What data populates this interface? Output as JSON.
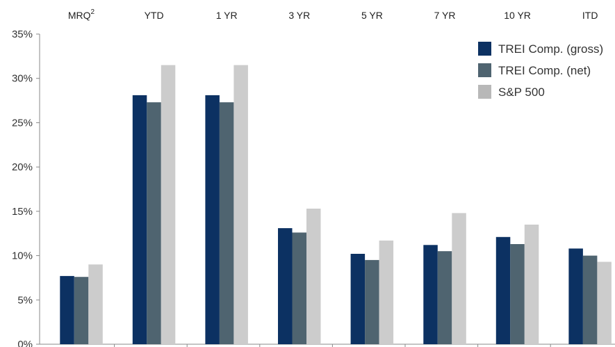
{
  "chart_data": {
    "type": "bar",
    "categories": [
      "MRQ",
      "YTD",
      "1 YR",
      "3 YR",
      "5 YR",
      "7 YR",
      "10 YR",
      "ITD"
    ],
    "category_superscripts": [
      "2",
      "",
      "",
      "",
      "",
      "",
      "",
      ""
    ],
    "series": [
      {
        "name": "TREI Comp. (gross)",
        "color": "#0c3162",
        "values": [
          7.7,
          28.1,
          28.1,
          13.1,
          10.2,
          11.2,
          12.1,
          10.8
        ]
      },
      {
        "name": "TREI Comp. (net)",
        "color": "#4f6470",
        "values": [
          7.6,
          27.3,
          27.3,
          12.6,
          9.5,
          10.5,
          11.3,
          10.0
        ]
      },
      {
        "name": "S&P 500",
        "color": "#cccccc",
        "values": [
          9.0,
          31.5,
          31.5,
          15.3,
          11.7,
          14.8,
          13.5,
          9.3
        ]
      }
    ],
    "y_ticks": [
      "0%",
      "5%",
      "10%",
      "15%",
      "20%",
      "25%",
      "30%",
      "35%"
    ],
    "ylim": [
      0,
      35
    ],
    "category_label_position": "top",
    "legend_position": "top-right",
    "grid": false
  }
}
